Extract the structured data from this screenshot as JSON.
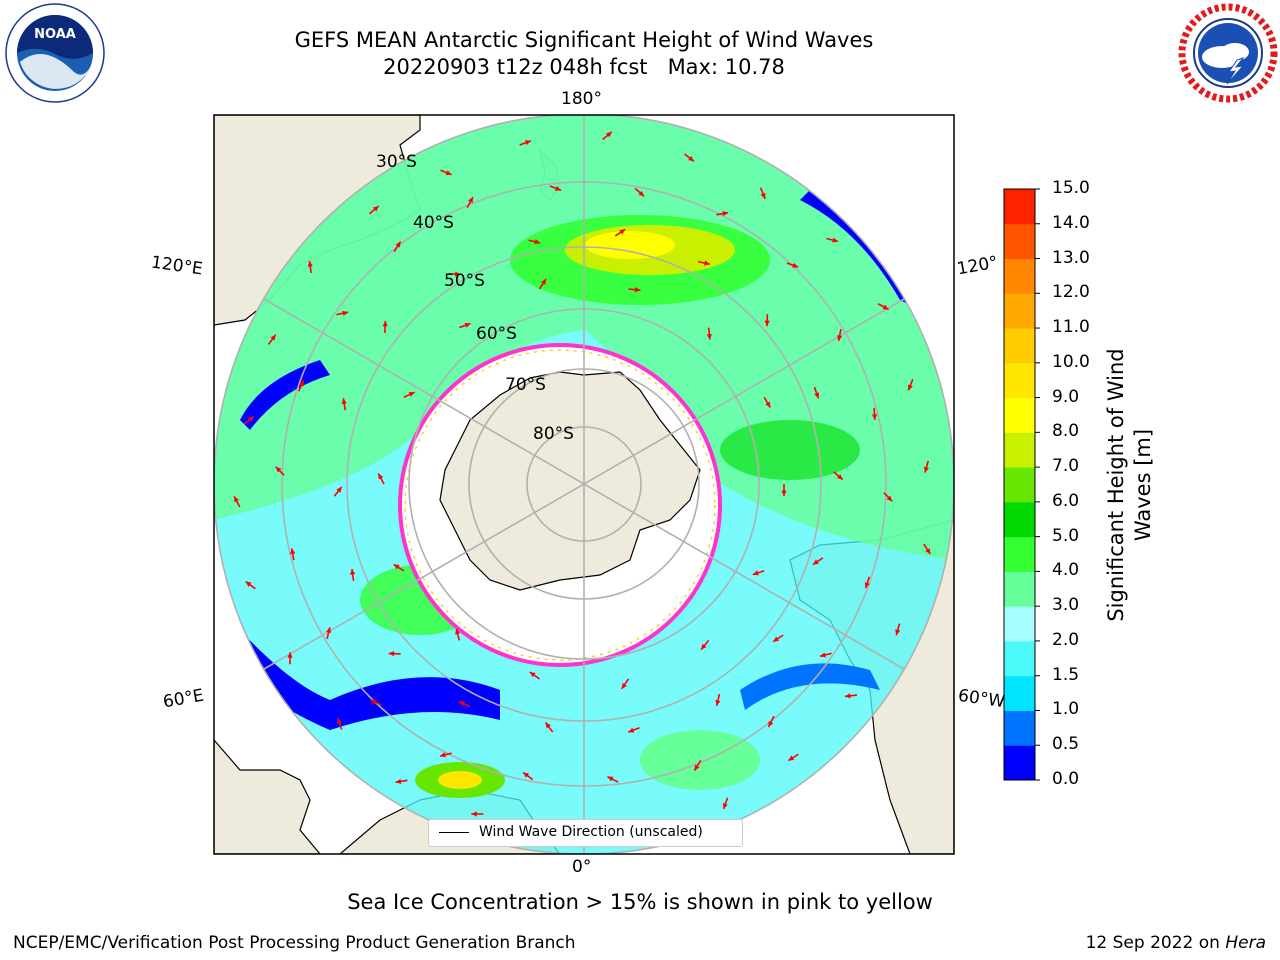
{
  "header": {
    "title_line1": "GEFS MEAN Antarctic Significant Height of Wind Waves",
    "title_line2": "20220903 t12z 048h fcst   Max: 10.78"
  },
  "map": {
    "projection": "south-polar-stereographic",
    "lon_labels": {
      "top": "180°",
      "bottom": "0°",
      "left_upper": "120°E",
      "left_lower": "60°E",
      "right_upper": "120°",
      "right_lower": "60°W"
    },
    "lat_labels": [
      "30°S",
      "40°S",
      "50°S",
      "60°S",
      "70°S",
      "80°S"
    ],
    "legend_label": "Wind Wave Direction (unscaled)",
    "land_color": "#efebdc",
    "arrow_color": "#ff0000",
    "sea_ice_colors": [
      "#ff33cc",
      "#ffcc33"
    ]
  },
  "colorbar": {
    "label": "Significant Height of Wind Waves [m]",
    "ticks": [
      "0.0",
      "0.5",
      "1.0",
      "1.5",
      "2.0",
      "3.0",
      "4.0",
      "5.0",
      "6.0",
      "7.0",
      "8.0",
      "9.0",
      "10.0",
      "11.0",
      "12.0",
      "13.0",
      "14.0",
      "15.0"
    ],
    "colors": [
      "#0000ff",
      "#0073ff",
      "#00e5ff",
      "#4cf9f9",
      "#a6ffff",
      "#66ff99",
      "#33ff33",
      "#00d900",
      "#66e600",
      "#c8f000",
      "#ffff00",
      "#ffe600",
      "#ffcc00",
      "#ffaa00",
      "#ff8800",
      "#ff5500",
      "#ff2200"
    ]
  },
  "footer": {
    "caption": "Sea Ice Concentration > 15% is shown in pink to yellow",
    "credit": "NCEP/EMC/Verification Post Processing Product Generation Branch",
    "date": "12 Sep 2022 on",
    "host": "Hera"
  },
  "logos": {
    "noaa_text": "NOAA",
    "nws_text": "NATIONAL WEATHER SERVICE"
  }
}
